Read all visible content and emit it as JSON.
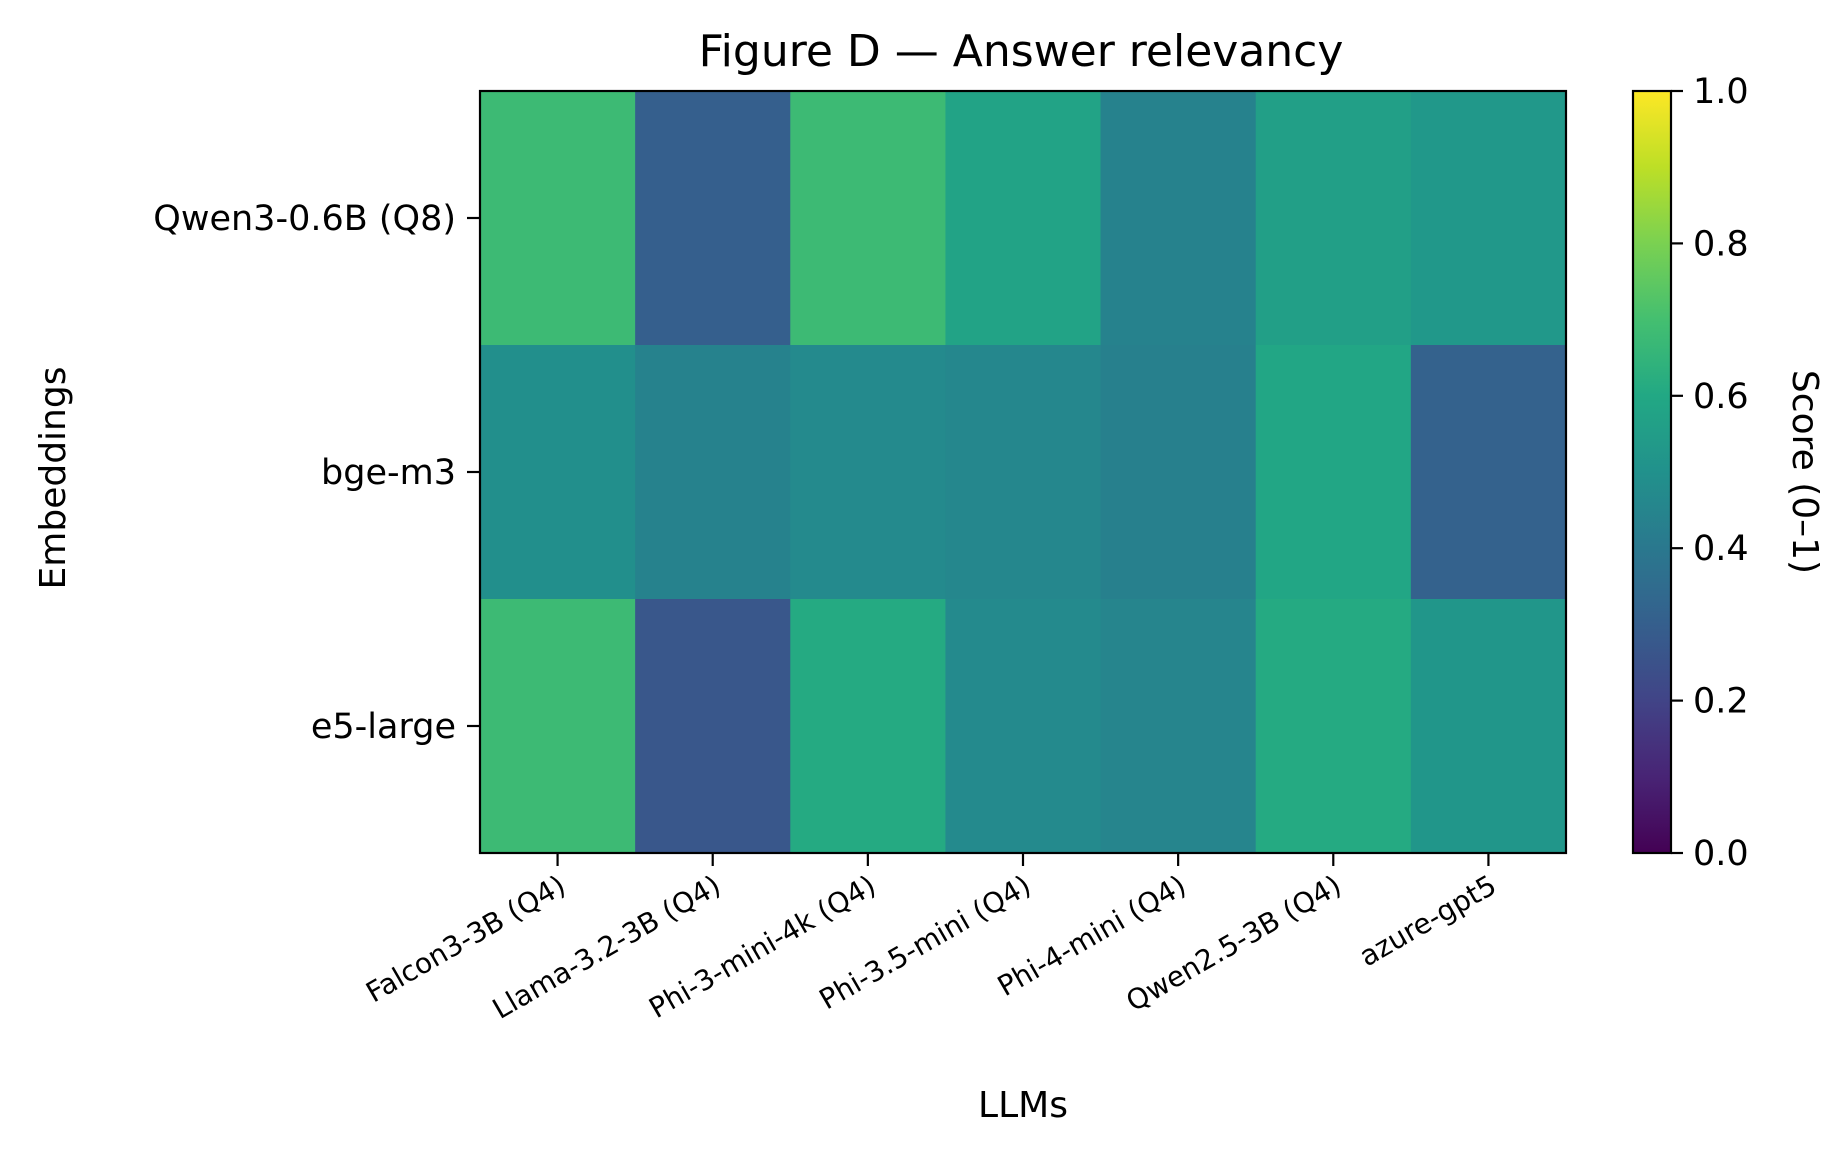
{
  "chart_data": {
    "type": "heatmap",
    "title": "Figure D — Answer relevancy",
    "xlabel": "LLMs",
    "ylabel": "Embeddings",
    "colorbar_label": "Score (0–1)",
    "colormap": "viridis",
    "vmin": 0.0,
    "vmax": 1.0,
    "colorbar_ticks": [
      "0.0",
      "0.2",
      "0.4",
      "0.6",
      "0.8",
      "1.0"
    ],
    "x_categories": [
      "Falcon3-3B (Q4)",
      "Llama-3.2-3B (Q4)",
      "Phi-3-mini-4k (Q4)",
      "Phi-3.5-mini (Q4)",
      "Phi-4-mini (Q4)",
      "Qwen2.5-3B (Q4)",
      "azure-gpt5"
    ],
    "y_categories": [
      "Qwen3-0.6B (Q8)",
      "bge-m3",
      "e5-large"
    ],
    "values": [
      [
        0.68,
        0.3,
        0.68,
        0.58,
        0.44,
        0.56,
        0.53
      ],
      [
        0.49,
        0.44,
        0.47,
        0.46,
        0.43,
        0.59,
        0.31
      ],
      [
        0.68,
        0.27,
        0.61,
        0.47,
        0.45,
        0.61,
        0.52
      ]
    ]
  }
}
